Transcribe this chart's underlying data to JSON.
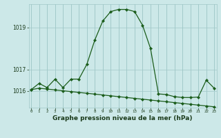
{
  "hours": [
    0,
    1,
    2,
    3,
    4,
    5,
    6,
    7,
    8,
    9,
    10,
    11,
    12,
    13,
    14,
    15,
    16,
    17,
    18,
    19,
    20,
    21,
    22,
    23
  ],
  "pressure_line1": [
    1016.05,
    1016.35,
    1016.15,
    1016.55,
    1016.15,
    1016.55,
    1016.55,
    1017.25,
    1018.4,
    1019.3,
    1019.75,
    1019.85,
    1019.85,
    1019.75,
    1019.1,
    1018.0,
    1015.85,
    1015.82,
    1015.72,
    1015.68,
    1015.68,
    1015.7,
    1016.5,
    1016.12
  ],
  "pressure_line2": [
    1016.05,
    1016.12,
    1016.08,
    1016.04,
    1016.0,
    1015.96,
    1015.92,
    1015.88,
    1015.84,
    1015.8,
    1015.76,
    1015.72,
    1015.68,
    1015.64,
    1015.6,
    1015.56,
    1015.52,
    1015.48,
    1015.44,
    1015.4,
    1015.36,
    1015.32,
    1015.28,
    1015.24
  ],
  "line_color": "#1a5c1a",
  "bg_color": "#cce8e8",
  "grid_color": "#a0c8c8",
  "title": "Graphe pression niveau de la mer (hPa)",
  "ylim_min": 1015.2,
  "ylim_max": 1020.1,
  "yticks": [
    1016,
    1017,
    1019
  ],
  "ytick_labels": [
    "1016",
    "1017",
    "1019"
  ],
  "title_fontsize": 6.5,
  "xtick_fontsize": 4.2,
  "ytick_fontsize": 5.5
}
